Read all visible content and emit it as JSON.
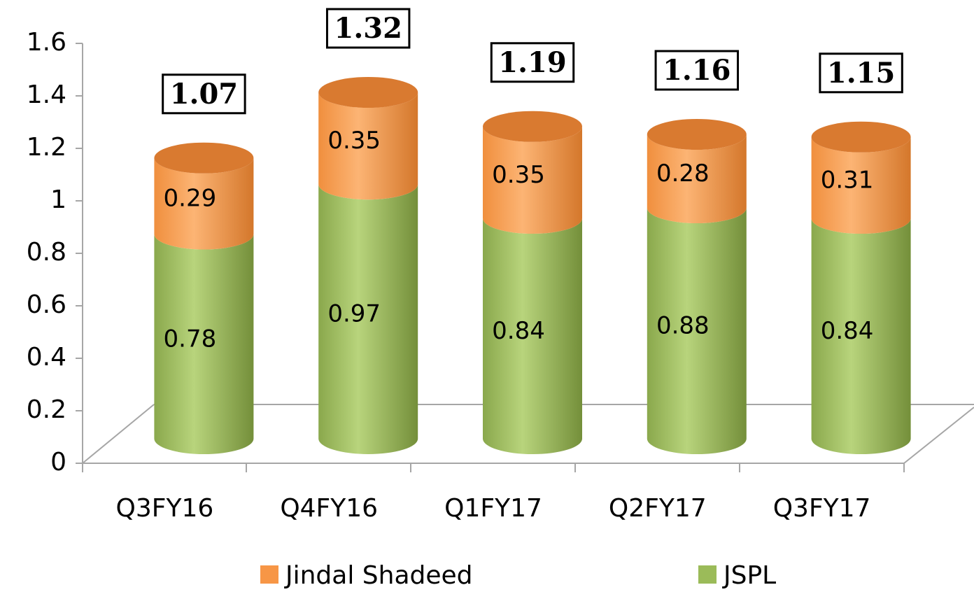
{
  "chart_data": {
    "type": "stacked-cylinder",
    "categories": [
      "Q3FY16",
      "Q4FY16",
      "Q1FY17",
      "Q2FY17",
      "Q3FY17"
    ],
    "series": [
      {
        "name": "JSPL",
        "color": "#9bbb59",
        "values": [
          0.78,
          0.97,
          0.84,
          0.88,
          0.84
        ]
      },
      {
        "name": "Jindal Shadeed",
        "color": "#f79646",
        "values": [
          0.29,
          0.35,
          0.35,
          0.28,
          0.31
        ]
      }
    ],
    "totals": [
      1.07,
      1.32,
      1.19,
      1.16,
      1.15
    ],
    "ylim": [
      0,
      1.6
    ],
    "yticks": [
      0,
      0.2,
      0.4,
      0.6,
      0.8,
      1,
      1.2,
      1.4,
      1.6
    ]
  }
}
